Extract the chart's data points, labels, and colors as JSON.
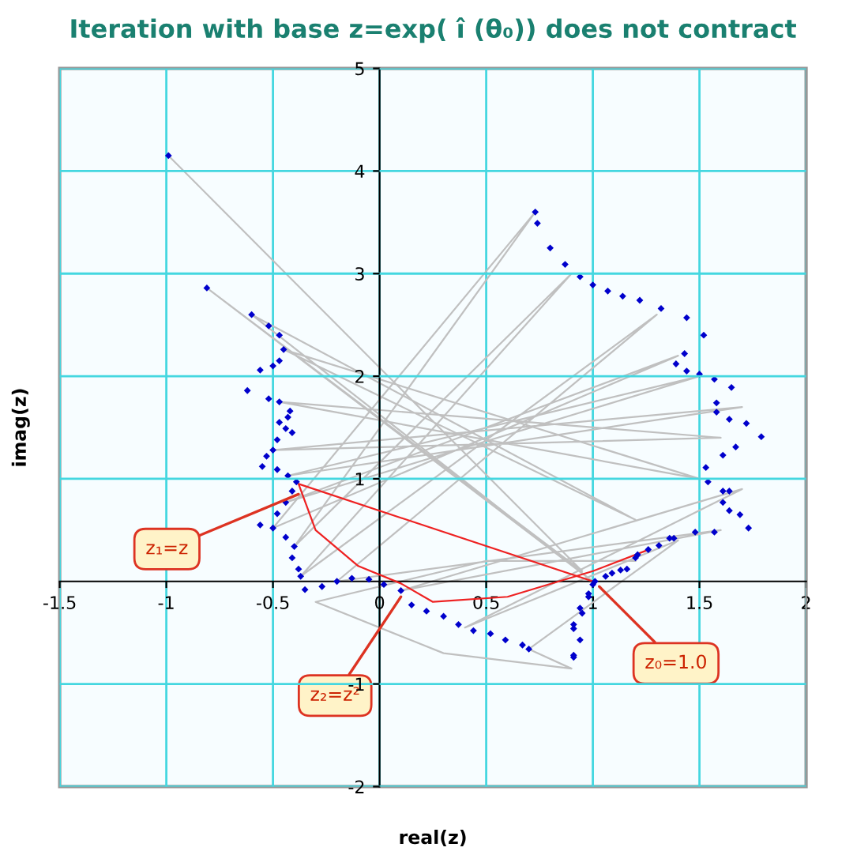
{
  "chart_data": {
    "type": "scatter",
    "title": "Iteration with base z=exp( î (θ₀)) does not contract",
    "xlabel": "real(z)",
    "ylabel": "imag(z)",
    "xlim": [
      -1.5,
      2
    ],
    "ylim": [
      -2,
      5
    ],
    "xticks": [
      -1.5,
      -1,
      -0.5,
      0,
      0.5,
      1,
      1.5,
      2
    ],
    "yticks": [
      -2,
      -1,
      1,
      2,
      3,
      4,
      5
    ],
    "grid": true,
    "marker": "diamond",
    "line_style": "solid",
    "series": [
      {
        "type": "line",
        "color": "#c0c0c0",
        "marker": "none",
        "x": [
          -0.99,
          0.95,
          -0.81,
          1.0,
          -0.6,
          1.2,
          -0.45,
          1.5,
          -0.47,
          1.6,
          -0.5,
          1.7,
          -0.43,
          1.5,
          -0.44,
          1.4,
          -0.5,
          0.73,
          -0.4,
          0.9,
          -0.37,
          1.3,
          -0.2,
          1.6,
          0.1,
          1.7,
          0.4,
          1.4,
          0.7,
          0.9,
          0.3,
          -0.3,
          0.5,
          1.2
        ],
        "values": [
          4.15,
          0.1,
          2.86,
          0.0,
          2.6,
          0.6,
          2.26,
          1.0,
          1.75,
          1.4,
          1.28,
          1.7,
          1.03,
          2.0,
          0.77,
          2.2,
          0.52,
          3.6,
          0.34,
          3.0,
          0.05,
          2.6,
          0.0,
          0.5,
          -0.09,
          0.9,
          -0.45,
          0.4,
          -0.66,
          -0.85,
          -0.7,
          -0.2,
          0.2,
          0.2
        ]
      },
      {
        "type": "line",
        "color": "#ee2222",
        "marker": "none",
        "x": [
          1.0,
          -0.38,
          -0.3,
          -0.1,
          0.1,
          0.25,
          0.6,
          1.0,
          1.25
        ],
        "values": [
          0.0,
          0.95,
          0.5,
          0.15,
          -0.02,
          -0.2,
          -0.15,
          0.1,
          0.3
        ]
      },
      {
        "type": "scatter",
        "color": "#0000cc",
        "x": [
          -0.99,
          -0.81,
          -0.6,
          -0.52,
          -0.47,
          -0.45,
          -0.47,
          -0.5,
          -0.56,
          -0.62,
          -0.52,
          -0.47,
          -0.42,
          -0.43,
          -0.47,
          -0.44,
          -0.41,
          -0.48,
          -0.5,
          -0.53,
          -0.55,
          -0.48,
          -0.43,
          -0.39,
          -0.41,
          -0.44,
          -0.48,
          -0.56,
          -0.5,
          -0.44,
          -0.4,
          -0.41,
          -0.38,
          -0.37,
          -0.35,
          -0.27,
          -0.2,
          -0.13,
          -0.05,
          0.02,
          0.1,
          0.15,
          0.22,
          0.3,
          0.37,
          0.44,
          0.52,
          0.59,
          0.67,
          0.7,
          0.91,
          0.94,
          0.91,
          0.95,
          0.98,
          1.0,
          1.06,
          1.13,
          1.2,
          1.26,
          1.36,
          0.73,
          0.74,
          0.8,
          0.87,
          0.94,
          1.0,
          1.07,
          1.14,
          1.22,
          1.32,
          1.44,
          1.52,
          1.43,
          1.39,
          1.44,
          1.5,
          1.57,
          1.65,
          1.58,
          1.58,
          1.64,
          1.72,
          1.79,
          1.67,
          1.61,
          1.53,
          1.54,
          1.61,
          1.64,
          1.61,
          1.64,
          1.69,
          1.73,
          1.57,
          1.48,
          1.38,
          1.31,
          1.21,
          1.16,
          1.09,
          1.01,
          0.98,
          0.94,
          0.91,
          0.91
        ],
        "values": [
          4.15,
          2.86,
          2.6,
          2.49,
          2.4,
          2.26,
          2.15,
          2.1,
          2.06,
          1.86,
          1.78,
          1.75,
          1.66,
          1.6,
          1.55,
          1.49,
          1.45,
          1.38,
          1.28,
          1.22,
          1.12,
          1.09,
          1.03,
          0.97,
          0.88,
          0.77,
          0.66,
          0.55,
          0.52,
          0.43,
          0.34,
          0.23,
          0.12,
          0.05,
          -0.08,
          -0.05,
          0.0,
          0.03,
          0.02,
          -0.03,
          -0.09,
          -0.23,
          -0.29,
          -0.34,
          -0.42,
          -0.48,
          -0.51,
          -0.57,
          -0.62,
          -0.66,
          -0.74,
          -0.57,
          -0.46,
          -0.31,
          -0.15,
          -0.03,
          0.05,
          0.11,
          0.23,
          0.31,
          0.42,
          3.6,
          3.49,
          3.25,
          3.09,
          2.97,
          2.89,
          2.83,
          2.78,
          2.74,
          2.66,
          2.57,
          2.4,
          2.22,
          2.12,
          2.05,
          2.02,
          1.97,
          1.89,
          1.74,
          1.65,
          1.58,
          1.54,
          1.41,
          1.31,
          1.23,
          1.11,
          0.97,
          0.88,
          0.88,
          0.77,
          0.69,
          0.65,
          0.52,
          0.48,
          0.48,
          0.42,
          0.35,
          0.26,
          0.12,
          0.08,
          0.0,
          -0.12,
          -0.26,
          -0.42,
          -0.72
        ]
      }
    ],
    "annotations": [
      {
        "text": "z₁=z",
        "x": -0.38,
        "y": 0.85
      },
      {
        "text": "z₂=z²",
        "x": 0.1,
        "y": -0.15
      },
      {
        "text": "z₀=1.0",
        "x": 1.03,
        "y": -0.05
      }
    ]
  }
}
